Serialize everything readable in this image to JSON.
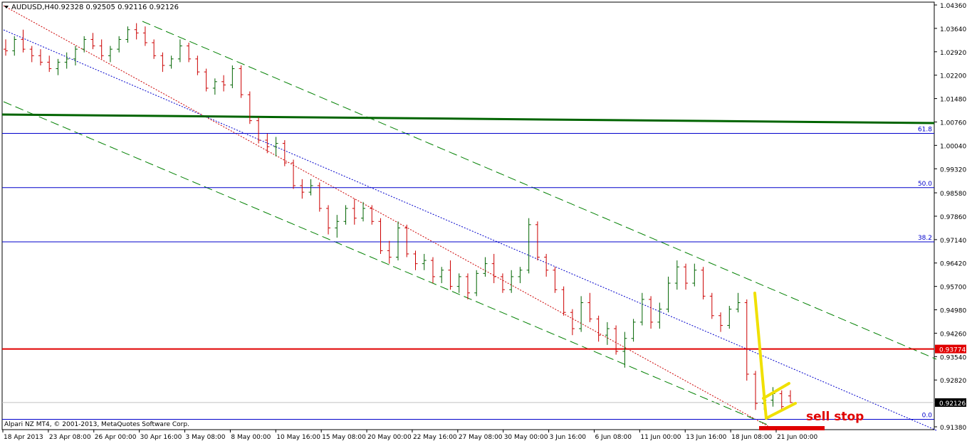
{
  "header": {
    "symbol": "AUDUSD,H4",
    "ohlc": "0.92328 0.92505 0.92116 0.92126"
  },
  "footer": {
    "copyright": "Alpari NZ MT4, © 2001-2013, MetaQuotes Software Corp."
  },
  "annotations": {
    "sell_stop": "sell stop"
  },
  "colors": {
    "bull": "#006400",
    "bear": "#cc0000",
    "fib": "#0000cc",
    "redline": "#e00000",
    "yellow": "#f0e000",
    "green_line": "#008000"
  },
  "chart_data": {
    "type": "candlestick",
    "title": "AUDUSD,H4",
    "price_axis": {
      "ticks": [
        "1.04360",
        "1.03640",
        "1.02920",
        "1.02200",
        "1.01480",
        "1.00760",
        "1.00040",
        "0.99320",
        "0.98580",
        "0.97860",
        "0.97140",
        "0.96420",
        "0.95700",
        "0.94980",
        "0.94260",
        "0.93540",
        "0.92820",
        "0.91380"
      ],
      "ylim": [
        0.9138,
        1.0436
      ]
    },
    "time_axis": {
      "ticks": [
        "18 Apr 2013",
        "23 Apr 08:00",
        "26 Apr 00:00",
        "30 Apr 16:00",
        "3 May 08:00",
        "8 May 00:00",
        "10 May 16:00",
        "15 May 08:00",
        "20 May 00:00",
        "22 May 16:00",
        "27 May 08:00",
        "30 May 00:00",
        "3 Jun 16:00",
        "6 Jun 08:00",
        "11 Jun 00:00",
        "13 Jun 16:00",
        "18 Jun 08:00",
        "21 Jun 00:00"
      ]
    },
    "fib_levels": [
      {
        "label": "61.8",
        "price": 1.0041
      },
      {
        "label": "50.0",
        "price": 0.9874
      },
      {
        "label": "38.2",
        "price": 0.9707
      },
      {
        "label": "0.0",
        "price": 0.9161
      }
    ],
    "horizontal_line": {
      "price": 0.93774,
      "label": "0.93774"
    },
    "current_price": {
      "price": 0.92126,
      "label": "0.92126"
    },
    "series": [
      {
        "o": 1.03,
        "h": 1.033,
        "l": 1.028,
        "c": 1.0295
      },
      {
        "o": 1.0295,
        "h": 1.034,
        "l": 1.028,
        "c": 1.033
      },
      {
        "o": 1.033,
        "h": 1.036,
        "l": 1.029,
        "c": 1.03
      },
      {
        "o": 1.03,
        "h": 1.031,
        "l": 1.026,
        "c": 1.028
      },
      {
        "o": 1.028,
        "h": 1.03,
        "l": 1.025,
        "c": 1.026
      },
      {
        "o": 1.026,
        "h": 1.028,
        "l": 1.023,
        "c": 1.024
      },
      {
        "o": 1.024,
        "h": 1.027,
        "l": 1.022,
        "c": 1.026
      },
      {
        "o": 1.026,
        "h": 1.029,
        "l": 1.024,
        "c": 1.027
      },
      {
        "o": 1.027,
        "h": 1.031,
        "l": 1.025,
        "c": 1.03
      },
      {
        "o": 1.03,
        "h": 1.034,
        "l": 1.029,
        "c": 1.033
      },
      {
        "o": 1.033,
        "h": 1.035,
        "l": 1.03,
        "c": 1.031
      },
      {
        "o": 1.031,
        "h": 1.033,
        "l": 1.027,
        "c": 1.028
      },
      {
        "o": 1.028,
        "h": 1.031,
        "l": 1.026,
        "c": 1.03
      },
      {
        "o": 1.03,
        "h": 1.034,
        "l": 1.029,
        "c": 1.033
      },
      {
        "o": 1.033,
        "h": 1.037,
        "l": 1.032,
        "c": 1.036
      },
      {
        "o": 1.036,
        "h": 1.038,
        "l": 1.033,
        "c": 1.035
      },
      {
        "o": 1.035,
        "h": 1.037,
        "l": 1.031,
        "c": 1.032
      },
      {
        "o": 1.032,
        "h": 1.033,
        "l": 1.027,
        "c": 1.028
      },
      {
        "o": 1.028,
        "h": 1.029,
        "l": 1.023,
        "c": 1.025
      },
      {
        "o": 1.025,
        "h": 1.028,
        "l": 1.024,
        "c": 1.027
      },
      {
        "o": 1.027,
        "h": 1.033,
        "l": 1.026,
        "c": 1.031
      },
      {
        "o": 1.031,
        "h": 1.032,
        "l": 1.026,
        "c": 1.027
      },
      {
        "o": 1.027,
        "h": 1.028,
        "l": 1.022,
        "c": 1.023
      },
      {
        "o": 1.023,
        "h": 1.024,
        "l": 1.017,
        "c": 1.018
      },
      {
        "o": 1.018,
        "h": 1.021,
        "l": 1.016,
        "c": 1.02
      },
      {
        "o": 1.02,
        "h": 1.022,
        "l": 1.017,
        "c": 1.019
      },
      {
        "o": 1.019,
        "h": 1.025,
        "l": 1.018,
        "c": 1.024
      },
      {
        "o": 1.024,
        "h": 1.025,
        "l": 1.015,
        "c": 1.016
      },
      {
        "o": 1.016,
        "h": 1.017,
        "l": 1.007,
        "c": 1.008
      },
      {
        "o": 1.008,
        "h": 1.009,
        "l": 1.001,
        "c": 1.002
      },
      {
        "o": 1.002,
        "h": 1.004,
        "l": 0.998,
        "c": 1.0
      },
      {
        "o": 1.0,
        "h": 1.003,
        "l": 0.997,
        "c": 1.001
      },
      {
        "o": 1.001,
        "h": 1.002,
        "l": 0.994,
        "c": 0.995
      },
      {
        "o": 0.995,
        "h": 0.996,
        "l": 0.987,
        "c": 0.988
      },
      {
        "o": 0.988,
        "h": 0.99,
        "l": 0.984,
        "c": 0.986
      },
      {
        "o": 0.986,
        "h": 0.99,
        "l": 0.985,
        "c": 0.988
      },
      {
        "o": 0.988,
        "h": 0.989,
        "l": 0.98,
        "c": 0.981
      },
      {
        "o": 0.981,
        "h": 0.982,
        "l": 0.973,
        "c": 0.975
      },
      {
        "o": 0.975,
        "h": 0.979,
        "l": 0.972,
        "c": 0.977
      },
      {
        "o": 0.977,
        "h": 0.982,
        "l": 0.976,
        "c": 0.981
      },
      {
        "o": 0.981,
        "h": 0.984,
        "l": 0.976,
        "c": 0.978
      },
      {
        "o": 0.978,
        "h": 0.983,
        "l": 0.977,
        "c": 0.981
      },
      {
        "o": 0.981,
        "h": 0.982,
        "l": 0.976,
        "c": 0.977
      },
      {
        "o": 0.977,
        "h": 0.978,
        "l": 0.967,
        "c": 0.968
      },
      {
        "o": 0.968,
        "h": 0.971,
        "l": 0.964,
        "c": 0.966
      },
      {
        "o": 0.966,
        "h": 0.977,
        "l": 0.965,
        "c": 0.975
      },
      {
        "o": 0.975,
        "h": 0.976,
        "l": 0.966,
        "c": 0.967
      },
      {
        "o": 0.967,
        "h": 0.968,
        "l": 0.962,
        "c": 0.964
      },
      {
        "o": 0.964,
        "h": 0.967,
        "l": 0.962,
        "c": 0.965
      },
      {
        "o": 0.965,
        "h": 0.966,
        "l": 0.958,
        "c": 0.96
      },
      {
        "o": 0.96,
        "h": 0.963,
        "l": 0.958,
        "c": 0.962
      },
      {
        "o": 0.962,
        "h": 0.965,
        "l": 0.956,
        "c": 0.957
      },
      {
        "o": 0.957,
        "h": 0.961,
        "l": 0.955,
        "c": 0.96
      },
      {
        "o": 0.96,
        "h": 0.961,
        "l": 0.953,
        "c": 0.955
      },
      {
        "o": 0.955,
        "h": 0.962,
        "l": 0.954,
        "c": 0.961
      },
      {
        "o": 0.961,
        "h": 0.966,
        "l": 0.96,
        "c": 0.964
      },
      {
        "o": 0.964,
        "h": 0.967,
        "l": 0.958,
        "c": 0.96
      },
      {
        "o": 0.96,
        "h": 0.961,
        "l": 0.955,
        "c": 0.956
      },
      {
        "o": 0.956,
        "h": 0.962,
        "l": 0.955,
        "c": 0.96
      },
      {
        "o": 0.96,
        "h": 0.963,
        "l": 0.958,
        "c": 0.962
      },
      {
        "o": 0.962,
        "h": 0.978,
        "l": 0.961,
        "c": 0.976
      },
      {
        "o": 0.976,
        "h": 0.977,
        "l": 0.965,
        "c": 0.966
      },
      {
        "o": 0.966,
        "h": 0.967,
        "l": 0.96,
        "c": 0.962
      },
      {
        "o": 0.962,
        "h": 0.963,
        "l": 0.955,
        "c": 0.956
      },
      {
        "o": 0.956,
        "h": 0.957,
        "l": 0.948,
        "c": 0.949
      },
      {
        "o": 0.949,
        "h": 0.95,
        "l": 0.942,
        "c": 0.944
      },
      {
        "o": 0.944,
        "h": 0.954,
        "l": 0.943,
        "c": 0.952
      },
      {
        "o": 0.952,
        "h": 0.955,
        "l": 0.946,
        "c": 0.947
      },
      {
        "o": 0.947,
        "h": 0.948,
        "l": 0.94,
        "c": 0.942
      },
      {
        "o": 0.942,
        "h": 0.946,
        "l": 0.939,
        "c": 0.944
      },
      {
        "o": 0.944,
        "h": 0.945,
        "l": 0.936,
        "c": 0.937
      },
      {
        "o": 0.937,
        "h": 0.943,
        "l": 0.932,
        "c": 0.941
      },
      {
        "o": 0.941,
        "h": 0.947,
        "l": 0.94,
        "c": 0.946
      },
      {
        "o": 0.946,
        "h": 0.955,
        "l": 0.945,
        "c": 0.953
      },
      {
        "o": 0.953,
        "h": 0.954,
        "l": 0.944,
        "c": 0.946
      },
      {
        "o": 0.946,
        "h": 0.952,
        "l": 0.944,
        "c": 0.95
      },
      {
        "o": 0.95,
        "h": 0.96,
        "l": 0.949,
        "c": 0.958
      },
      {
        "o": 0.958,
        "h": 0.965,
        "l": 0.956,
        "c": 0.963
      },
      {
        "o": 0.963,
        "h": 0.964,
        "l": 0.956,
        "c": 0.958
      },
      {
        "o": 0.958,
        "h": 0.964,
        "l": 0.957,
        "c": 0.962
      },
      {
        "o": 0.962,
        "h": 0.963,
        "l": 0.953,
        "c": 0.954
      },
      {
        "o": 0.954,
        "h": 0.955,
        "l": 0.947,
        "c": 0.948
      },
      {
        "o": 0.948,
        "h": 0.949,
        "l": 0.943,
        "c": 0.945
      },
      {
        "o": 0.945,
        "h": 0.951,
        "l": 0.944,
        "c": 0.95
      },
      {
        "o": 0.95,
        "h": 0.955,
        "l": 0.949,
        "c": 0.952
      },
      {
        "o": 0.952,
        "h": 0.953,
        "l": 0.928,
        "c": 0.93
      },
      {
        "o": 0.93,
        "h": 0.931,
        "l": 0.919,
        "c": 0.921
      },
      {
        "o": 0.921,
        "h": 0.924,
        "l": 0.919,
        "c": 0.922
      },
      {
        "o": 0.922,
        "h": 0.926,
        "l": 0.92,
        "c": 0.924
      },
      {
        "o": 0.924,
        "h": 0.925,
        "l": 0.919,
        "c": 0.92
      },
      {
        "o": 0.9233,
        "h": 0.92505,
        "l": 0.92116,
        "c": 0.92126
      }
    ]
  }
}
